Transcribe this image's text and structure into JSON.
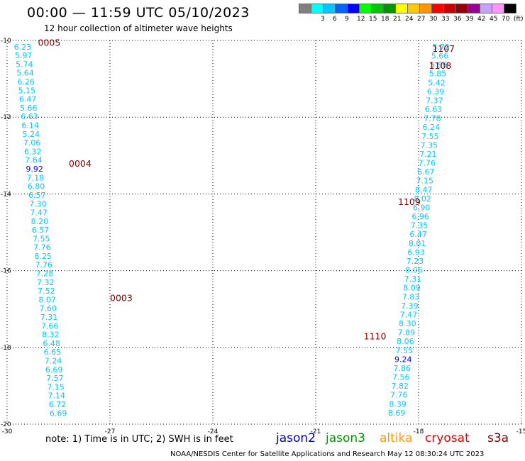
{
  "header": {
    "title": "00:00 — 11:59 UTC 05/10/2023",
    "subtitle": "12 hour collection of altimeter wave heights"
  },
  "legend": {
    "swatches": [
      {
        "color": "#808080",
        "label": ""
      },
      {
        "color": "#00ffff",
        "label": "3"
      },
      {
        "color": "#00c8ff",
        "label": "6"
      },
      {
        "color": "#0064ff",
        "label": "9"
      },
      {
        "color": "#0000ff",
        "label": "12"
      },
      {
        "color": "#00ff00",
        "label": "15"
      },
      {
        "color": "#00c800",
        "label": "18"
      },
      {
        "color": "#009600",
        "label": "21"
      },
      {
        "color": "#ffff00",
        "label": "24"
      },
      {
        "color": "#ffc800",
        "label": "27"
      },
      {
        "color": "#ff9600",
        "label": "30"
      },
      {
        "color": "#ff0000",
        "label": "33"
      },
      {
        "color": "#c80000",
        "label": "36"
      },
      {
        "color": "#960000",
        "label": "39"
      },
      {
        "color": "#960096",
        "label": "42"
      },
      {
        "color": "#c8a0ff",
        "label": "45"
      },
      {
        "color": "#ff96ff",
        "label": "70"
      },
      {
        "color": "#000000",
        "label": "(ft)"
      }
    ]
  },
  "map": {
    "lon_range": [
      -30,
      -15
    ],
    "lat_range": [
      -20,
      -10
    ],
    "lon_ticks": [
      {
        "value": -30,
        "label": "-30"
      },
      {
        "value": -27,
        "label": "-27"
      },
      {
        "value": -24,
        "label": "-24"
      },
      {
        "value": -21,
        "label": "-21"
      },
      {
        "value": -18,
        "label": "-18"
      },
      {
        "value": -15,
        "label": "-15"
      }
    ],
    "lat_ticks": [
      {
        "value": -10,
        "label": "-10"
      },
      {
        "value": -12,
        "label": "-12"
      },
      {
        "value": -14,
        "label": "-14"
      },
      {
        "value": -16,
        "label": "-16"
      },
      {
        "value": -18,
        "label": "-18"
      },
      {
        "value": -20,
        "label": "-20"
      }
    ],
    "colors": {
      "light": "#00c8ff",
      "dark": "#0000ff",
      "pass_label": "#7a0000"
    },
    "tracks": [
      {
        "lon_start": -29.8,
        "lon_step": 0.02475,
        "values": [
          "6.23",
          "5.97",
          "5.74",
          "5.64",
          "6.26",
          "5.15",
          "6.47",
          "5.66",
          "6.63",
          "6.14",
          "5.24",
          "7.06",
          "6.32",
          "7.64",
          "9.92",
          "7.18",
          "6.80",
          "6.57",
          "7.30",
          "7.47",
          "8.20",
          "6.57",
          "7.55",
          "7.76",
          "8.25",
          "7.76",
          "7.28",
          "7.32",
          "7.52",
          "8.07",
          "7.60",
          "7.31",
          "7.66",
          "8.32",
          "6.48",
          "6.65",
          "7.24",
          "6.69",
          "7.57",
          "7.15",
          "7.14",
          "6.72",
          "6.69"
        ],
        "highlight": [
          "9.92"
        ]
      },
      {
        "lon_start": -17.6,
        "lon_step": -0.0315,
        "values": [
          "5.72",
          "5.66",
          "5.96",
          "5.85",
          "5.42",
          "6.39",
          "7.37",
          "6.63",
          "7.78",
          "6.24",
          "7.55",
          "7.35",
          "7.21",
          "7.76",
          "6.67",
          "7.15",
          "8.47",
          "8.02",
          "6.90",
          "6.96",
          "7.35",
          "6.47",
          "8.01",
          "6.93",
          "7.23",
          "8.06",
          "7.31",
          "8.09",
          "7.83",
          "7.39",
          "7.47",
          "8.30",
          "7.89",
          "8.06",
          "7.55",
          "9.24",
          "7.86",
          "7.56",
          "7.82",
          "7.76",
          "8.39",
          "8.69"
        ],
        "highlight": [
          "9.24"
        ]
      }
    ],
    "pass_labels": [
      {
        "text": "0005",
        "lon": -29.1,
        "lat": -10.05
      },
      {
        "text": "0004",
        "lon": -28.2,
        "lat": -13.2
      },
      {
        "text": "0003",
        "lon": -27.0,
        "lat": -16.7
      },
      {
        "text": "1107",
        "lon": -17.6,
        "lat": -10.2
      },
      {
        "text": "1108",
        "lon": -17.7,
        "lat": -10.65
      },
      {
        "text": "1109",
        "lon": -18.6,
        "lat": -14.2
      },
      {
        "text": "1110",
        "lon": -19.6,
        "lat": -17.7
      }
    ]
  },
  "footer": {
    "note": "note:  1) Time is in UTC;  2) SWH is in feet",
    "satellites": [
      {
        "name": "jason2",
        "color": "#0000c8"
      },
      {
        "name": "jason3",
        "color": "#009600"
      },
      {
        "name": "altika",
        "color": "#ff9600"
      },
      {
        "name": "cryosat",
        "color": "#e00000"
      },
      {
        "name": "s3a",
        "color": "#7a0000"
      }
    ],
    "credit": "NOAA/NESDIS Center for Satellite Applications and Research     May 12 08:30:24 UTC 2023"
  }
}
